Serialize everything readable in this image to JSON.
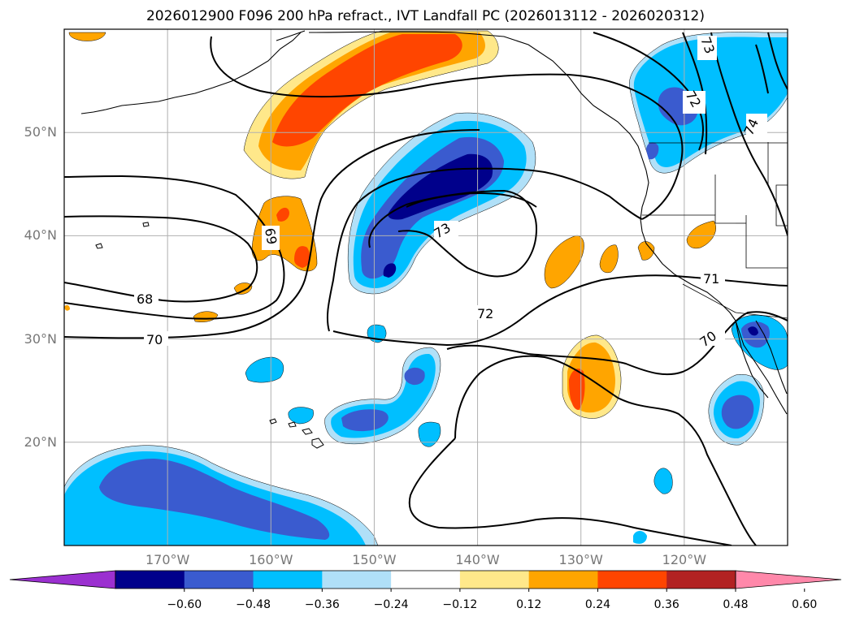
{
  "title": "2026012900 F096 200 hPa refract., IVT Landfall PC (2026013112 - 2026020312)",
  "map": {
    "projection": "cylindrical",
    "lon_range": [
      -180,
      -110
    ],
    "lat_range": [
      10,
      60
    ],
    "lat_ticks": [
      {
        "value": 20,
        "label": "20°N"
      },
      {
        "value": 30,
        "label": "30°N"
      },
      {
        "value": 40,
        "label": "40°N"
      },
      {
        "value": 50,
        "label": "50°N"
      }
    ],
    "lon_ticks": [
      {
        "value": -170,
        "label": "170°W"
      },
      {
        "value": -160,
        "label": "160°W"
      },
      {
        "value": -150,
        "label": "150°W"
      },
      {
        "value": -140,
        "label": "140°W"
      },
      {
        "value": -130,
        "label": "130°W"
      },
      {
        "value": -120,
        "label": "120°W"
      }
    ],
    "grid": true,
    "contour_labels": [
      "68",
      "69",
      "70",
      "70",
      "71",
      "72",
      "73",
      "73",
      "72",
      "74"
    ]
  },
  "colorbar": {
    "extend": "both",
    "colors": [
      "#9b30d0",
      "#00008b",
      "#3a5bcf",
      "#00bfff",
      "#b0e0f8",
      "#ffffff",
      "#ffe88a",
      "#ffa500",
      "#ff4500",
      "#b22222",
      "#ff88aa"
    ],
    "ticks": [
      "−0.60",
      "−0.48",
      "−0.36",
      "−0.24",
      "−0.12",
      "0.12",
      "0.24",
      "0.36",
      "0.48",
      "0.60"
    ]
  },
  "colors": {
    "deep_blue": "#00008b",
    "mid_blue": "#3a5bcf",
    "sky_blue": "#00bfff",
    "light_blue": "#b0e0f8",
    "yellow": "#ffe88a",
    "orange": "#ffa500",
    "red_orange": "#ff4500",
    "grid": "#b0b0b0",
    "label_gray": "#777777"
  }
}
